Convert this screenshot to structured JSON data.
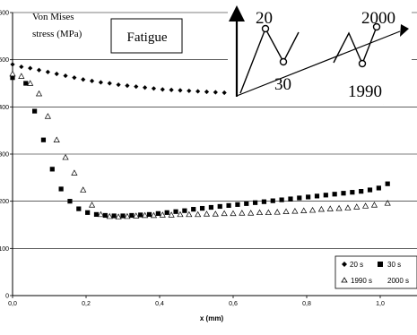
{
  "chart_data": {
    "type": "scatter",
    "title": "",
    "ylabel": "Von Mises stress (MPa)",
    "ylabel_lines": [
      "Von Mises",
      "stress (MPa)"
    ],
    "xlabel": "x (mm)",
    "xlim": [
      0,
      1.1
    ],
    "ylim": [
      0,
      600
    ],
    "x_ticks": [
      0,
      0.2,
      0.4,
      0.6,
      0.8,
      1.0
    ],
    "x_tick_labels": [
      "0,0",
      "0,2",
      "0,4",
      "0,6",
      "0,8",
      "1,0"
    ],
    "y_ticks": [
      0,
      100,
      200,
      300,
      400,
      500,
      600
    ],
    "y_tick_labels": [
      "0",
      "100",
      "200",
      "300",
      "400",
      "500",
      "600"
    ],
    "grid": "horizontal",
    "legend_position": "bottom-right",
    "annotation_box": "Fatigue",
    "series": [
      {
        "name": "20 s",
        "marker": "diamond",
        "x": [
          0.0,
          0.024,
          0.048,
          0.072,
          0.096,
          0.12,
          0.144,
          0.168,
          0.192,
          0.216,
          0.24,
          0.264,
          0.288,
          0.312,
          0.336,
          0.36,
          0.384,
          0.408,
          0.432,
          0.456,
          0.48,
          0.504,
          0.528,
          0.552,
          0.576,
          0.6,
          0.624,
          0.648,
          0.672,
          0.696,
          0.72,
          0.744,
          0.768,
          0.792,
          0.816,
          0.84,
          0.864,
          0.888,
          0.912,
          0.936,
          0.96,
          0.984,
          1.008
        ],
        "y": [
          490,
          485,
          482,
          478,
          474,
          470,
          466,
          462,
          458,
          455,
          452,
          450,
          447,
          445,
          443,
          441,
          439,
          437,
          436,
          435,
          434,
          433,
          432,
          431,
          430,
          429,
          428,
          428,
          427,
          427,
          426,
          426,
          425,
          425,
          424,
          424,
          423,
          423,
          422,
          422,
          421,
          421,
          411
        ]
      },
      {
        "name": "30 s",
        "marker": "square",
        "x": [
          0.0,
          0.036,
          0.06,
          0.084,
          0.108,
          0.132,
          0.156,
          0.18,
          0.204,
          0.228,
          0.252,
          0.276,
          0.3,
          0.324,
          0.348,
          0.372,
          0.396,
          0.42,
          0.444,
          0.468,
          0.492,
          0.516,
          0.54,
          0.564,
          0.588,
          0.612,
          0.636,
          0.66,
          0.684,
          0.708,
          0.732,
          0.756,
          0.78,
          0.804,
          0.828,
          0.852,
          0.876,
          0.9,
          0.924,
          0.948,
          0.972,
          0.996,
          1.02
        ],
        "y": [
          462,
          450,
          391,
          330,
          268,
          226,
          200,
          184,
          176,
          172,
          170,
          169,
          169,
          170,
          171,
          172,
          174,
          176,
          178,
          180,
          183,
          185,
          187,
          189,
          191,
          193,
          195,
          197,
          199,
          201,
          203,
          205,
          207,
          209,
          211,
          213,
          215,
          217,
          219,
          221,
          224,
          228,
          237
        ]
      },
      {
        "name": "1990 s",
        "marker": "triangle",
        "x": [
          0.0,
          0.024,
          0.048,
          0.072,
          0.096,
          0.12,
          0.144,
          0.168,
          0.192,
          0.216,
          0.24,
          0.264,
          0.288,
          0.312,
          0.336,
          0.36,
          0.384,
          0.408,
          0.432,
          0.456,
          0.48,
          0.504,
          0.528,
          0.552,
          0.576,
          0.6,
          0.624,
          0.648,
          0.672,
          0.696,
          0.72,
          0.744,
          0.768,
          0.792,
          0.816,
          0.84,
          0.864,
          0.888,
          0.912,
          0.936,
          0.96,
          0.984,
          1.02
        ],
        "y": [
          470,
          465,
          450,
          428,
          380,
          330,
          293,
          260,
          224,
          192,
          172,
          168,
          167,
          168,
          169,
          170,
          170,
          171,
          171,
          172,
          172,
          172,
          173,
          173,
          174,
          174,
          175,
          175,
          176,
          176,
          177,
          178,
          179,
          180,
          181,
          183,
          184,
          185,
          186,
          188,
          190,
          192,
          196
        ]
      },
      {
        "name": "2000 s",
        "marker": "circle",
        "x": [],
        "y": []
      }
    ]
  },
  "inset": {
    "labels": [
      "20",
      "30",
      "2000",
      "1990"
    ]
  },
  "colors": {
    "marker": "#000000",
    "grid": "#000000",
    "background": "#ffffff"
  }
}
